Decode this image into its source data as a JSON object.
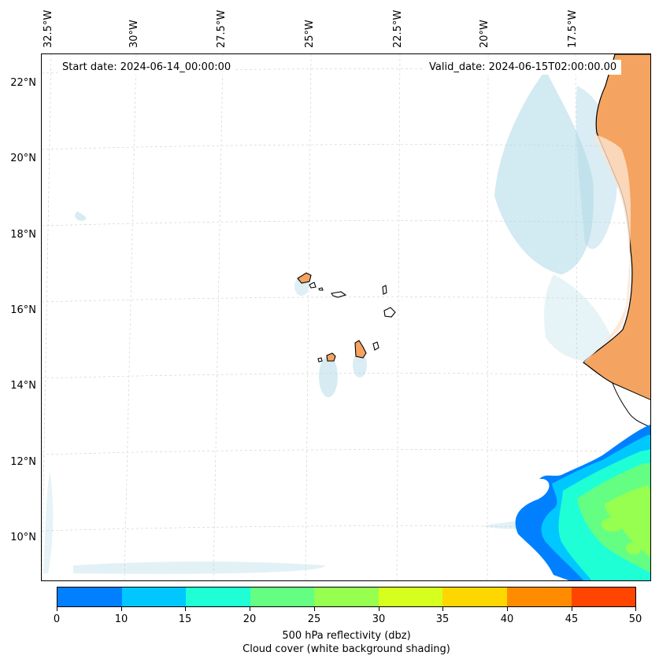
{
  "map": {
    "start_date": "Start date: 2024-06-14_00:00:00",
    "valid_date": "Valid_date: 2024-06-15T02:00:00.00",
    "lon_labels": [
      "32.5°W",
      "30°W",
      "27.5°W",
      "25°W",
      "22.5°W",
      "20°W",
      "17.5°W"
    ],
    "lat_labels": [
      "22°N",
      "20°N",
      "18°N",
      "16°N",
      "14°N",
      "12°N",
      "10°N"
    ],
    "land_color": "#f4a460",
    "coast_color": "#000000",
    "cloud_color": "#add8e6"
  },
  "colorbar": {
    "colors": [
      "#0080ff",
      "#00c8ff",
      "#1effd6",
      "#64ff82",
      "#96ff50",
      "#d7ff1e",
      "#ffd700",
      "#ff8c00",
      "#ff4500"
    ],
    "ticks": [
      "0",
      "10",
      "15",
      "20",
      "25",
      "30",
      "35",
      "40",
      "45",
      "50"
    ],
    "title_line1": "500 hPa reflectivity (dbz)",
    "title_line2": "Cloud cover (white background shading)"
  }
}
